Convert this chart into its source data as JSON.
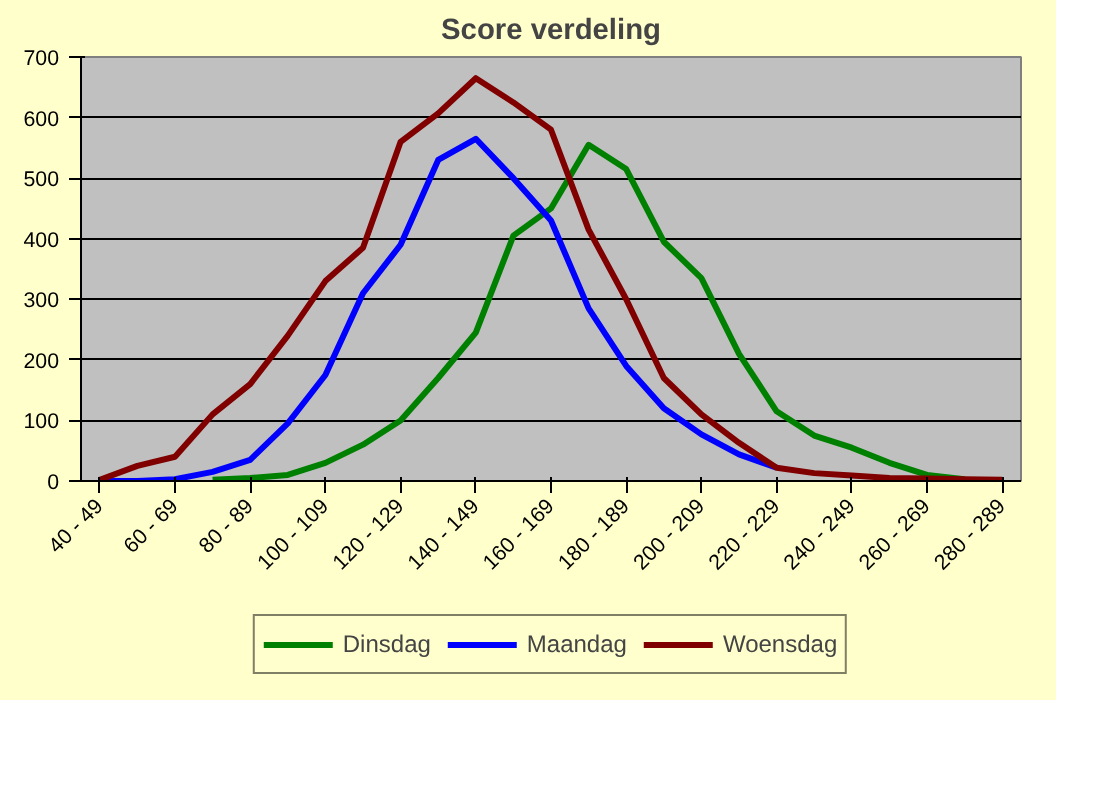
{
  "chart_data": {
    "type": "line",
    "title": "Score verdeling",
    "categories": [
      "40 - 49",
      null,
      "60 - 69",
      null,
      "80 - 89",
      null,
      "100 - 109",
      null,
      "120 - 129",
      null,
      "140 - 149",
      null,
      "160 - 169",
      null,
      "180 - 189",
      null,
      "200 - 209",
      null,
      "220 - 229",
      null,
      "240 - 249",
      null,
      "260 - 269",
      null,
      "280 - 289"
    ],
    "series": [
      {
        "name": "Dinsdag",
        "color": "#008000",
        "values": [
          null,
          null,
          null,
          2,
          5,
          10,
          30,
          60,
          100,
          170,
          245,
          405,
          450,
          555,
          515,
          395,
          335,
          210,
          115,
          75,
          55,
          30,
          10,
          3,
          null
        ]
      },
      {
        "name": "Maandag",
        "color": "#0000ff",
        "values": [
          0,
          0,
          3,
          15,
          35,
          95,
          175,
          310,
          390,
          530,
          565,
          500,
          430,
          285,
          190,
          120,
          77,
          44,
          22,
          null,
          null,
          null,
          null,
          null,
          null
        ]
      },
      {
        "name": "Woensdag",
        "color": "#800000",
        "values": [
          2,
          25,
          40,
          110,
          160,
          240,
          330,
          385,
          560,
          607,
          665,
          625,
          580,
          415,
          300,
          170,
          110,
          63,
          22,
          13,
          9,
          5,
          4,
          3,
          2
        ]
      }
    ],
    "ylim": [
      0,
      700
    ],
    "yticks": [
      0,
      100,
      200,
      300,
      400,
      500,
      600,
      700
    ],
    "grid": "y",
    "legend": "bottom",
    "marker": "none",
    "line_style": "solid"
  }
}
